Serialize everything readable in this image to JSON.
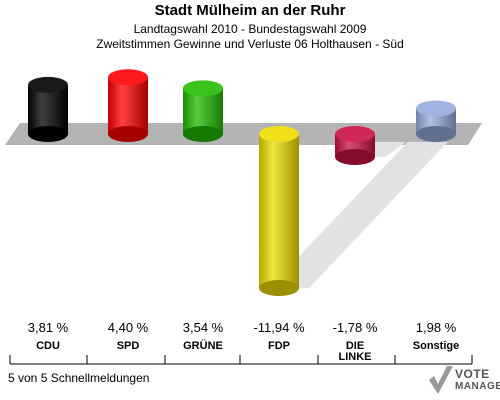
{
  "header": {
    "title": "Stadt Mülheim an der Ruhr",
    "subtitle1": "Landtagswahl 2010 - Bundestagswahl 2009",
    "subtitle2": "Zweitstimmen Gewinne und Verluste 06 Holthausen - Süd"
  },
  "footer": {
    "text": "5 von 5 Schnellmeldungen"
  },
  "logo": {
    "line1": "VOTE",
    "line2": "MANAGER"
  },
  "chart_data": {
    "type": "bar",
    "title": "Stadt Mülheim an der Ruhr",
    "categories": [
      "CDU",
      "SPD",
      "GRÜNE",
      "FDP",
      "DIE LINKE",
      "Sonstige"
    ],
    "category_lines": [
      [
        "CDU"
      ],
      [
        "SPD"
      ],
      [
        "GRÜNE"
      ],
      [
        "FDP"
      ],
      [
        "DIE",
        "LINKE"
      ],
      [
        "Sonstige"
      ]
    ],
    "values": [
      3.81,
      4.4,
      3.54,
      -11.94,
      -1.78,
      1.98
    ],
    "value_labels": [
      "3,81 %",
      "4,40 %",
      "3,54 %",
      "-11,94 %",
      "-1,78 %",
      "1,98 %"
    ],
    "colors": [
      "#000000",
      "#ff0000",
      "#22bb00",
      "#eedd00",
      "#cc1144",
      "#99aadd"
    ],
    "ylim": [
      -12,
      4.4
    ],
    "grid": false,
    "legend": "none"
  }
}
